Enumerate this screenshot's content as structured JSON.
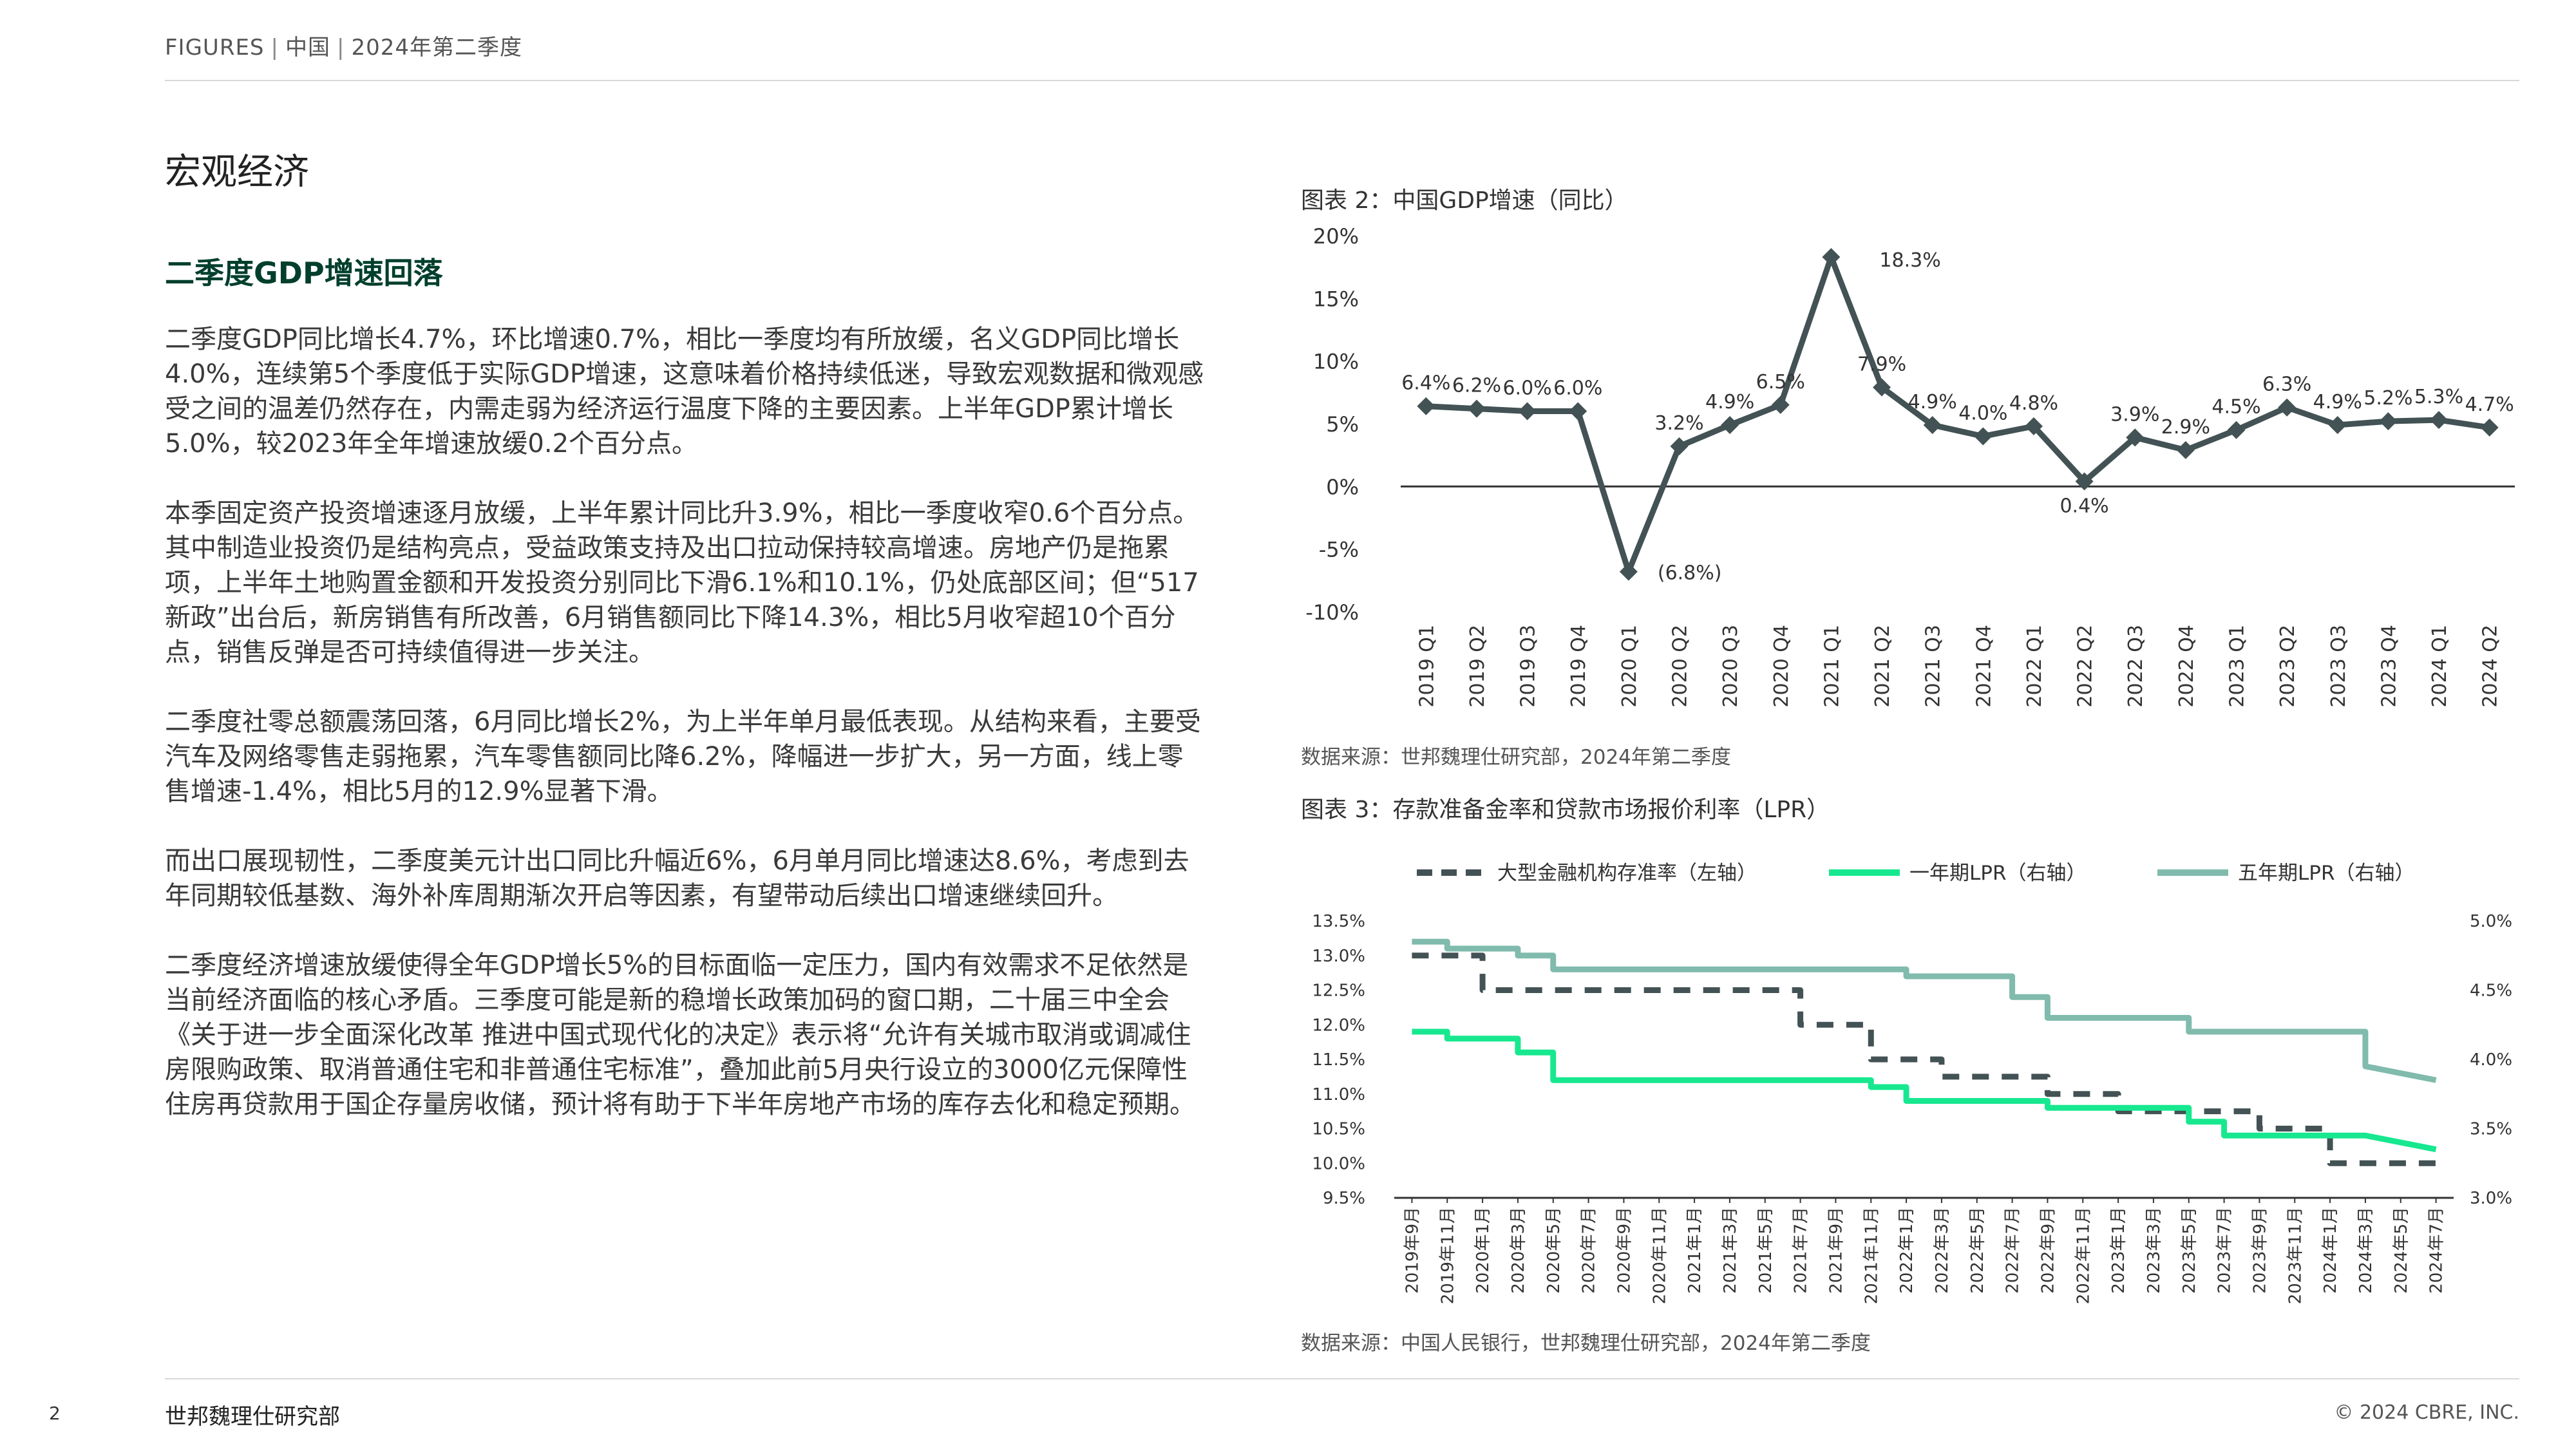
{
  "header": {
    "part1": "FIGURES",
    "part2": "中国",
    "part3": "2024年第二季度"
  },
  "section_title": "宏观经济",
  "sub_title": "二季度GDP增速回落",
  "paragraphs": [
    "二季度GDP同比增长4.7%，环比增速0.7%，相比一季度均有所放缓，名义GDP同比增长4.0%，连续第5个季度低于实际GDP增速，这意味着价格持续低迷，导致宏观数据和微观感受之间的温差仍然存在，内需走弱为经济运行温度下降的主要因素。上半年GDP累计增长5.0%，较2023年全年增速放缓0.2个百分点。",
    "本季固定资产投资增速逐月放缓，上半年累计同比升3.9%，相比一季度收窄0.6个百分点。其中制造业投资仍是结构亮点，受益政策支持及出口拉动保持较高增速。房地产仍是拖累项，上半年土地购置金额和开发投资分别同比下滑6.1%和10.1%，仍处底部区间；但“517新政”出台后，新房销售有所改善，6月销售额同比下降14.3%，相比5月收窄超10个百分点，销售反弹是否可持续值得进一步关注。",
    "二季度社零总额震荡回落，6月同比增长2%，为上半年单月最低表现。从结构来看，主要受汽车及网络零售走弱拖累，汽车零售额同比降6.2%，降幅进一步扩大，另一方面，线上零售增速-1.4%，相比5月的12.9%显著下滑。",
    "而出口展现韧性，二季度美元计出口同比升幅近6%，6月单月同比增速达8.6%，考虑到去年同期较低基数、海外补库周期渐次开启等因素，有望带动后续出口增速继续回升。",
    "二季度经济增速放缓使得全年GDP增长5%的目标面临一定压力，国内有效需求不足依然是当前经济面临的核心矛盾。三季度可能是新的稳增长政策加码的窗口期，二十届三中全会《关于进一步全面深化改革 推进中国式现代化的决定》表示将“允许有关城市取消或调减住房限购政策、取消普通住宅和非普通住宅标准”，叠加此前5月央行设立的3000亿元保障性住房再贷款用于国企存量房收储，预计将有助于下半年房地产市场的库存去化和稳定预期。"
  ],
  "figure2": {
    "title": "图表 2：中国GDP增速（同比）",
    "source": "数据来源：世邦魏理仕研究部，2024年第二季度"
  },
  "figure3": {
    "title": "图表 3：存款准备金率和贷款市场报价利率（LPR）",
    "source": "数据来源：中国人民银行，世邦魏理仕研究部，2024年第二季度"
  },
  "footer": {
    "page": "2",
    "name": "世邦魏理仕研究部",
    "copyright": "© 2024 CBRE, INC."
  },
  "colors": {
    "gdp_line": "#435254",
    "rrr": "#435254",
    "lpr1y": "#17e88f",
    "lpr5y": "#80bbad",
    "green_title": "#003f2d"
  },
  "chart_data": [
    {
      "type": "line",
      "categories": [
        "2019 Q1",
        "2019 Q2",
        "2019 Q3",
        "2019 Q4",
        "2020 Q1",
        "2020 Q2",
        "2020 Q3",
        "2020 Q4",
        "2021 Q1",
        "2021 Q2",
        "2021 Q3",
        "2021 Q4",
        "2022 Q1",
        "2022 Q2",
        "2022 Q3",
        "2022 Q4",
        "2023 Q1",
        "2023 Q2",
        "2023 Q3",
        "2023 Q4",
        "2024 Q1",
        "2024 Q2"
      ],
      "series": [
        {
          "values": [
            6.4,
            6.2,
            6.0,
            6.0,
            -6.8,
            3.2,
            4.9,
            6.5,
            18.3,
            7.9,
            4.9,
            4.0,
            4.8,
            0.4,
            3.9,
            2.9,
            4.5,
            6.3,
            4.9,
            5.2,
            5.3,
            4.7
          ]
        }
      ],
      "data_labels": [
        "6.4%",
        "6.2%",
        "6.0%",
        "6.0%",
        "(6.8%)",
        "3.2%",
        "4.9%",
        "6.5%",
        "18.3%",
        "7.9%",
        "4.9%",
        "4.0%",
        "4.8%",
        "0.4%",
        "3.9%",
        "2.9%",
        "4.5%",
        "6.3%",
        "4.9%",
        "5.2%",
        "5.3%",
        "4.7%"
      ],
      "yticks": [
        "20%",
        "15%",
        "10%",
        "5%",
        "0%",
        "-5%",
        "-10%"
      ],
      "ylim": [
        -10,
        20
      ],
      "grid": false
    },
    {
      "type": "line",
      "categories": [
        "2019年9月",
        "2019年11月",
        "2020年1月",
        "2020年3月",
        "2020年5月",
        "2020年7月",
        "2020年9月",
        "2020年11月",
        "2021年1月",
        "2021年3月",
        "2021年5月",
        "2021年7月",
        "2021年9月",
        "2021年11月",
        "2022年1月",
        "2022年3月",
        "2022年5月",
        "2022年7月",
        "2022年9月",
        "2022年11月",
        "2023年1月",
        "2023年3月",
        "2023年5月",
        "2023年7月",
        "2023年9月",
        "2023年11月",
        "2024年1月",
        "2024年3月",
        "2024年5月",
        "2024年7月"
      ],
      "legend": [
        "大型金融机构存准率（左轴）",
        "一年期LPR（右轴）",
        "五年期LPR（右轴）"
      ],
      "legend_position": "top",
      "y_left_ticks": [
        "13.5%",
        "13.0%",
        "12.5%",
        "12.0%",
        "11.5%",
        "11.0%",
        "10.5%",
        "10.0%",
        "9.5%"
      ],
      "y_right_ticks": [
        "5.0%",
        "4.5%",
        "4.0%",
        "3.5%",
        "3.0%"
      ],
      "ylim_left": [
        9.5,
        13.5
      ],
      "ylim_right": [
        3.0,
        5.0
      ],
      "series": [
        {
          "name": "大型金融机构存准率（左轴）",
          "axis": "left",
          "style": "dashed",
          "x": [
            0,
            2,
            2,
            6,
            6,
            11,
            11,
            13,
            13,
            15,
            15,
            18,
            18,
            20,
            20,
            22,
            22,
            24,
            24,
            26,
            26,
            29
          ],
          "values": [
            13.0,
            13.0,
            12.5,
            12.5,
            12.5,
            12.5,
            12.0,
            12.0,
            11.5,
            11.5,
            11.25,
            11.25,
            11.0,
            11.0,
            10.75,
            10.75,
            10.75,
            10.75,
            10.5,
            10.5,
            10.0,
            10.0
          ]
        },
        {
          "name": "一年期LPR（右轴）",
          "axis": "right",
          "style": "solid",
          "x": [
            0,
            1,
            1,
            3,
            3,
            4,
            4,
            13,
            13,
            14,
            14,
            18,
            18,
            22,
            22,
            23,
            23,
            27,
            27,
            29
          ],
          "values": [
            4.2,
            4.2,
            4.15,
            4.15,
            4.05,
            4.05,
            3.85,
            3.85,
            3.8,
            3.8,
            3.7,
            3.7,
            3.65,
            3.65,
            3.55,
            3.55,
            3.45,
            3.45,
            3.45,
            3.35
          ]
        },
        {
          "name": "五年期LPR（右轴）",
          "axis": "right",
          "style": "solid",
          "x": [
            0,
            1,
            1,
            3,
            3,
            4,
            4,
            14,
            14,
            17,
            17,
            18,
            18,
            22,
            22,
            27,
            27,
            29
          ],
          "values": [
            4.85,
            4.85,
            4.8,
            4.8,
            4.75,
            4.75,
            4.65,
            4.65,
            4.6,
            4.6,
            4.45,
            4.45,
            4.3,
            4.3,
            4.2,
            4.2,
            3.95,
            3.85
          ]
        }
      ],
      "grid": false
    }
  ]
}
